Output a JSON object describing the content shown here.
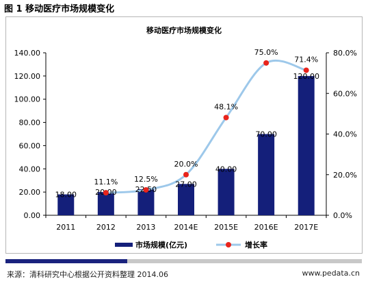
{
  "figure_label": "图 1 移动医疗市场规模变化",
  "footer": {
    "source": "来源：清科研究中心根据公开资料整理   2014.06",
    "url": "www.pedata.cn"
  },
  "colors": {
    "bar": "#141f7a",
    "line": "#9dc8ea",
    "marker": "#e8241c",
    "accent_navy": "#1a237e"
  },
  "chart_data": {
    "type": "bar",
    "title": "移动医疗市场规模变化",
    "categories": [
      "2011",
      "2012",
      "2013",
      "2014E",
      "2015E",
      "2016E",
      "2017E"
    ],
    "series": [
      {
        "name": "市场规模(亿元)",
        "type": "bar",
        "axis": "left",
        "values": [
          18.0,
          20.0,
          22.5,
          27.0,
          40.0,
          70.0,
          120.0
        ],
        "labels": [
          "18.00",
          "20.00",
          "22.50",
          "27.00",
          "40.00",
          "70.00",
          "120.00"
        ]
      },
      {
        "name": "增长率",
        "type": "line",
        "axis": "right",
        "values": [
          null,
          11.1,
          12.5,
          20.0,
          48.1,
          75.0,
          71.4
        ],
        "labels": [
          "",
          "11.1%",
          "12.5%",
          "20.0%",
          "48.1%",
          "75.0%",
          "71.4%"
        ]
      }
    ],
    "y_left": {
      "min": 0,
      "max": 140,
      "ticks": [
        "0.00",
        "20.00",
        "40.00",
        "60.00",
        "80.00",
        "100.00",
        "120.00",
        "140.00"
      ]
    },
    "y_right": {
      "min": 0,
      "max": 80,
      "ticks": [
        "0.0%",
        "20.0%",
        "40.0%",
        "60.0%",
        "80.0%"
      ]
    },
    "grid": false,
    "legend_position": "bottom"
  }
}
